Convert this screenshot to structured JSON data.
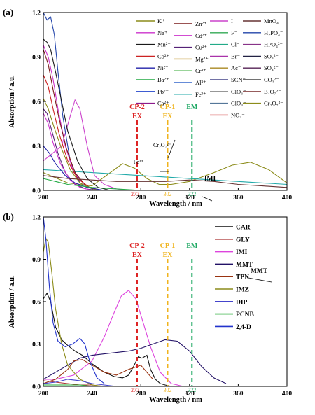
{
  "chart_data": [
    {
      "type": "line",
      "panel_label": "(a)",
      "xlabel": "Wavelength / nm",
      "ylabel": "Absorption / a.u.",
      "xlim": [
        200,
        400
      ],
      "ylim": [
        0,
        1.2
      ],
      "xticks": [
        "200",
        "240",
        "280",
        "320",
        "360",
        "400"
      ],
      "yticks": [
        "0.0",
        "0.3",
        "0.6",
        "0.9",
        "1.2"
      ],
      "legend_columns": [
        [
          {
            "name": "K⁺",
            "color": "#8c8c1a"
          },
          {
            "name": "Na⁺",
            "color": "#cc33cc"
          },
          {
            "name": "Mn²⁺",
            "color": "#1a1a1a"
          },
          {
            "name": "Co²⁺",
            "color": "#cc2222"
          },
          {
            "name": "Ni²⁺",
            "color": "#2222aa"
          },
          {
            "name": "Ba²⁺",
            "color": "#22aa44"
          },
          {
            "name": "Pb²⁺",
            "color": "#2244cc"
          },
          {
            "name": "Ca²⁺",
            "color": "#8c1a8c"
          }
        ],
        [
          {
            "name": "Zn²⁺",
            "color": "#7a1a1a"
          },
          {
            "name": "Cd²⁺",
            "color": "#cc33cc"
          },
          {
            "name": "Cu²⁺",
            "color": "#552277"
          },
          {
            "name": "Mg²⁺",
            "color": "#b8860b"
          },
          {
            "name": "Cr³⁺",
            "color": "#33aa33"
          },
          {
            "name": "Al³⁺",
            "color": "#3366cc"
          },
          {
            "name": "Fe³⁺",
            "color": "#22aaaa"
          }
        ],
        [
          {
            "name": "I⁻",
            "color": "#cc44cc"
          },
          {
            "name": "F⁻",
            "color": "#33aa55"
          },
          {
            "name": "Cl⁻",
            "color": "#22aa88"
          },
          {
            "name": "Br⁻",
            "color": "#aa33aa"
          },
          {
            "name": "Ac⁻",
            "color": "#aa8822"
          },
          {
            "name": "SCN⁻",
            "color": "#444488"
          },
          {
            "name": "ClO₃⁻",
            "color": "#888888"
          },
          {
            "name": "ClO₄⁻",
            "color": "#557799"
          },
          {
            "name": "NO₃⁻",
            "color": "#cc2222"
          }
        ],
        [
          {
            "name": "MnO₄⁻",
            "color": "#663333"
          },
          {
            "name": "H₂PO₄⁻",
            "color": "#2244aa"
          },
          {
            "name": "HPO₄²⁻",
            "color": "#883388"
          },
          {
            "name": "SO₃²⁻",
            "color": "#222244"
          },
          {
            "name": "SO₄²⁻",
            "color": "#552255"
          },
          {
            "name": "CO₃²⁻",
            "color": "#444444"
          },
          {
            "name": "B₄O₇²⁻",
            "color": "#884444"
          },
          {
            "name": "Cr₂O₇²⁻",
            "color": "#8c8c1a"
          }
        ]
      ],
      "series": [
        {
          "name": "Cr₂O₇²⁻",
          "color": "#8c8c1a",
          "x": [
            200,
            220,
            240,
            255,
            265,
            275,
            285,
            295,
            305,
            320,
            340,
            355,
            370,
            385,
            400
          ],
          "y": [
            0.12,
            0.05,
            0.03,
            0.12,
            0.18,
            0.15,
            0.08,
            0.04,
            0.04,
            0.06,
            0.12,
            0.17,
            0.19,
            0.14,
            0.05
          ]
        },
        {
          "name": "Fe³⁺",
          "color": "#22aaaa",
          "x": [
            200,
            220,
            240,
            260,
            280,
            300,
            320,
            340,
            360,
            380,
            400
          ],
          "y": [
            0.14,
            0.13,
            0.12,
            0.11,
            0.1,
            0.09,
            0.08,
            0.07,
            0.06,
            0.05,
            0.04
          ]
        },
        {
          "name": "I⁻",
          "color": "#cc44cc",
          "x": [
            200,
            215,
            222,
            226,
            230,
            236,
            242,
            250,
            260,
            270
          ],
          "y": [
            0.2,
            0.3,
            0.5,
            0.61,
            0.55,
            0.3,
            0.1,
            0.04,
            0.01,
            0.0
          ]
        },
        {
          "name": "H₂PO₄⁻",
          "color": "#2244aa",
          "x": [
            200,
            203,
            206,
            209,
            212,
            216,
            222,
            230,
            240,
            250
          ],
          "y": [
            1.2,
            1.15,
            1.17,
            1.05,
            0.8,
            0.5,
            0.2,
            0.05,
            0.01,
            0.0
          ]
        },
        {
          "name": "Mn²⁺",
          "color": "#1a1a1a",
          "x": [
            200,
            203,
            206,
            210,
            215,
            220,
            228,
            236,
            245,
            255
          ],
          "y": [
            1.02,
            1.0,
            0.95,
            0.8,
            0.6,
            0.4,
            0.2,
            0.08,
            0.02,
            0.0
          ]
        },
        {
          "name": "Na⁺",
          "color": "#cc33cc",
          "x": [
            200,
            204,
            208,
            212,
            218,
            225,
            235,
            245
          ],
          "y": [
            0.98,
            0.9,
            0.75,
            0.55,
            0.3,
            0.12,
            0.03,
            0.0
          ]
        },
        {
          "name": "Zn²⁺",
          "color": "#7a1a1a",
          "x": [
            200,
            204,
            208,
            213,
            219,
            226,
            235,
            245
          ],
          "y": [
            0.95,
            0.85,
            0.68,
            0.48,
            0.28,
            0.12,
            0.03,
            0.0
          ]
        },
        {
          "name": "Co²⁺",
          "color": "#cc2222",
          "x": [
            200,
            204,
            208,
            213,
            220,
            228,
            238,
            248
          ],
          "y": [
            0.78,
            0.7,
            0.55,
            0.38,
            0.2,
            0.08,
            0.02,
            0.0
          ]
        },
        {
          "name": "K⁺",
          "color": "#8c8c1a",
          "x": [
            200,
            204,
            209,
            215,
            222,
            230,
            240,
            250
          ],
          "y": [
            0.62,
            0.55,
            0.42,
            0.28,
            0.14,
            0.05,
            0.01,
            0.0
          ]
        },
        {
          "name": "Cu²⁺",
          "color": "#552277",
          "x": [
            200,
            203,
            207,
            212,
            218,
            226,
            235,
            245
          ],
          "y": [
            0.55,
            0.52,
            0.4,
            0.25,
            0.12,
            0.04,
            0.01,
            0.0
          ]
        },
        {
          "name": "Cd²⁺",
          "color": "#cc33cc",
          "x": [
            200,
            204,
            208,
            214,
            222,
            230,
            240
          ],
          "y": [
            0.52,
            0.45,
            0.32,
            0.18,
            0.07,
            0.02,
            0.0
          ]
        },
        {
          "name": "Ni²⁺",
          "color": "#2222aa",
          "x": [
            200,
            205,
            210,
            218,
            226,
            236,
            250
          ],
          "y": [
            0.3,
            0.25,
            0.18,
            0.1,
            0.05,
            0.02,
            0.0
          ]
        },
        {
          "name": "MnO₄⁻",
          "color": "#663333",
          "x": [
            200,
            220,
            240,
            260,
            280,
            300,
            320,
            340,
            360,
            380,
            400
          ],
          "y": [
            0.1,
            0.08,
            0.07,
            0.06,
            0.06,
            0.06,
            0.07,
            0.06,
            0.04,
            0.03,
            0.02
          ]
        },
        {
          "name": "Ba²⁺",
          "color": "#22aa44",
          "x": [
            200,
            210,
            220,
            230,
            240,
            260,
            280,
            300
          ],
          "y": [
            0.08,
            0.06,
            0.04,
            0.03,
            0.02,
            0.01,
            0.0,
            0.0
          ]
        }
      ],
      "vlines": [
        {
          "x": 277,
          "label": "277",
          "color": "#dd2222"
        },
        {
          "x": 302,
          "label": "302",
          "color": "#f0b41e"
        },
        {
          "x": 322,
          "label": "322",
          "color": "#22aa66"
        }
      ],
      "vline_headers": [
        {
          "lines": [
            "CP-2",
            "EX"
          ],
          "color": "#dd2222"
        },
        {
          "lines": [
            "CP-1",
            "EX"
          ],
          "color": "#f0b41e"
        },
        {
          "lines": [
            "EM"
          ],
          "color": "#22aa66"
        }
      ],
      "annotations": [
        {
          "text": "Cr₂O₇²⁻",
          "for": "Cr₂O₇²⁻"
        },
        {
          "text": "Fe³⁺",
          "for": "Fe³⁺"
        }
      ]
    },
    {
      "type": "line",
      "panel_label": "(b)",
      "xlabel": "Wavelength / nm",
      "ylabel": "Absorption / a.u.",
      "xlim": [
        200,
        400
      ],
      "ylim": [
        0,
        1.2
      ],
      "xticks": [
        "200",
        "240",
        "280",
        "320",
        "360",
        "400"
      ],
      "yticks": [
        "0.0",
        "0.3",
        "0.6",
        "0.9",
        "1.2"
      ],
      "series": [
        {
          "name": "CAR",
          "color": "#111111",
          "x": [
            200,
            203,
            206,
            210,
            215,
            220,
            226,
            232,
            240,
            250,
            258,
            265,
            270,
            274,
            278,
            281,
            285,
            288,
            292,
            296,
            300,
            305,
            310
          ],
          "y": [
            0.62,
            0.66,
            0.6,
            0.42,
            0.33,
            0.29,
            0.25,
            0.22,
            0.16,
            0.1,
            0.07,
            0.06,
            0.08,
            0.14,
            0.21,
            0.2,
            0.22,
            0.12,
            0.05,
            0.02,
            0.01,
            0.0,
            0.0
          ]
        },
        {
          "name": "GLY",
          "color": "#aa3333",
          "x": [
            200,
            210,
            220,
            230,
            240,
            250,
            260,
            270,
            280
          ],
          "y": [
            0.04,
            0.03,
            0.02,
            0.01,
            0.01,
            0.0,
            0.0,
            0.0,
            0.0
          ]
        },
        {
          "name": "IMI",
          "color": "#dd44dd",
          "x": [
            200,
            210,
            225,
            240,
            250,
            258,
            264,
            270,
            276,
            282,
            288,
            296,
            305,
            315
          ],
          "y": [
            0.05,
            0.05,
            0.08,
            0.18,
            0.35,
            0.52,
            0.64,
            0.68,
            0.62,
            0.45,
            0.28,
            0.1,
            0.02,
            0.0
          ]
        },
        {
          "name": "MMT",
          "color": "#221166",
          "x": [
            200,
            210,
            220,
            230,
            240,
            250,
            260,
            270,
            280,
            290,
            300,
            310,
            320,
            330,
            340,
            350
          ],
          "y": [
            0.05,
            0.1,
            0.15,
            0.2,
            0.22,
            0.23,
            0.24,
            0.25,
            0.27,
            0.3,
            0.33,
            0.32,
            0.25,
            0.14,
            0.06,
            0.02
          ]
        },
        {
          "name": "TPN",
          "color": "#993311",
          "x": [
            200,
            210,
            220,
            225,
            232,
            240,
            250,
            260,
            270,
            280,
            290
          ],
          "y": [
            0.02,
            0.05,
            0.12,
            0.18,
            0.19,
            0.15,
            0.1,
            0.08,
            0.12,
            0.15,
            0.05
          ]
        },
        {
          "name": "IMZ",
          "color": "#8c8c1a",
          "x": [
            200,
            202,
            204,
            207,
            210,
            215,
            220,
            230,
            240,
            250
          ],
          "y": [
            0.95,
            1.05,
            1.02,
            0.8,
            0.55,
            0.3,
            0.15,
            0.05,
            0.01,
            0.0
          ]
        },
        {
          "name": "DIP",
          "color": "#4444cc",
          "x": [
            200,
            210,
            220,
            230,
            235,
            240,
            250,
            260,
            280,
            300
          ],
          "y": [
            0.02,
            0.03,
            0.05,
            0.04,
            0.03,
            0.02,
            0.01,
            0.0,
            0.0,
            0.0
          ]
        },
        {
          "name": "PCNB",
          "color": "#22aa33",
          "x": [
            200,
            210,
            220,
            230,
            240,
            260,
            280,
            300
          ],
          "y": [
            0.01,
            0.01,
            0.01,
            0.01,
            0.0,
            0.0,
            0.0,
            0.0
          ]
        },
        {
          "name": "2,4-D",
          "color": "#2233cc",
          "x": [
            200,
            202,
            205,
            208,
            212,
            218,
            224,
            230,
            234,
            238,
            244,
            250
          ],
          "y": [
            1.2,
            1.05,
            0.7,
            0.45,
            0.32,
            0.28,
            0.3,
            0.34,
            0.3,
            0.18,
            0.06,
            0.02
          ]
        }
      ],
      "vlines": [
        {
          "x": 277,
          "label": "277",
          "color": "#dd2222"
        },
        {
          "x": 302,
          "label": "302",
          "color": "#f0b41e"
        },
        {
          "x": 322,
          "label": "322",
          "color": "#22aa66"
        }
      ],
      "vline_headers": [
        {
          "lines": [
            "CP-2",
            "EX"
          ],
          "color": "#dd2222"
        },
        {
          "lines": [
            "CP-1",
            "EX"
          ],
          "color": "#f0b41e"
        },
        {
          "lines": [
            "EM"
          ],
          "color": "#22aa66"
        }
      ],
      "annotations": [
        {
          "text": "IMI",
          "for": "IMI"
        },
        {
          "text": "MMT",
          "for": "MMT"
        }
      ]
    }
  ]
}
